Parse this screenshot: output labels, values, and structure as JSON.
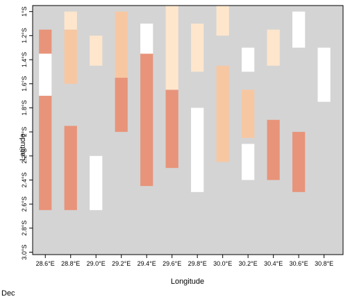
{
  "chart_data": {
    "type": "heatmap",
    "title": "",
    "xlabel": "Longitude",
    "ylabel": "Latitude",
    "xlim": [
      28.5,
      30.95
    ],
    "ylim": [
      -3.02,
      -0.95
    ],
    "x_ticks": [
      {
        "value": 28.6,
        "label": "28.6°E"
      },
      {
        "value": 28.8,
        "label": "28.8°E"
      },
      {
        "value": 29.0,
        "label": "29.0°E"
      },
      {
        "value": 29.2,
        "label": "29.2°E"
      },
      {
        "value": 29.4,
        "label": "29.4°E"
      },
      {
        "value": 29.6,
        "label": "29.6°E"
      },
      {
        "value": 29.8,
        "label": "29.8°E"
      },
      {
        "value": 30.0,
        "label": "30.0°E"
      },
      {
        "value": 30.2,
        "label": "30.2°E"
      },
      {
        "value": 30.4,
        "label": "30.4°E"
      },
      {
        "value": 30.6,
        "label": "30.6°E"
      },
      {
        "value": 30.8,
        "label": "30.8°E"
      }
    ],
    "y_ticks": [
      {
        "value": -1.0,
        "label": "1°S"
      },
      {
        "value": -1.2,
        "label": "1.2°S"
      },
      {
        "value": -1.4,
        "label": "1.4°S"
      },
      {
        "value": -1.6,
        "label": "1.6°S"
      },
      {
        "value": -1.8,
        "label": "1.8°S"
      },
      {
        "value": -2.0,
        "label": "2°S"
      },
      {
        "value": -2.2,
        "label": "2.2°S"
      },
      {
        "value": -2.4,
        "label": "2.4°S"
      },
      {
        "value": -2.6,
        "label": "2.6°S"
      },
      {
        "value": -2.8,
        "label": "2.8°S"
      },
      {
        "value": -3.0,
        "label": "3.0°S"
      }
    ],
    "grid": false,
    "cell_size_deg": 0.0625,
    "background_color": "#d4d4d4",
    "level_colors": {
      "white": "#ffffff",
      "light": "#fde6cc",
      "medium": "#f7c7a2",
      "dark": "#e8947a"
    },
    "cells": [
      {
        "col": 0,
        "r0": 4,
        "r1": 33,
        "level": "dark"
      },
      {
        "col": 0,
        "r0": 8,
        "r1": 14,
        "level": "white"
      },
      {
        "col": 1,
        "r0": 4,
        "r1": 12,
        "level": "medium"
      },
      {
        "col": 1,
        "r0": 20,
        "r1": 33,
        "level": "dark"
      },
      {
        "col": 1,
        "r0": 1,
        "r1": 3,
        "level": "light"
      },
      {
        "col": 2,
        "r0": 5,
        "r1": 9,
        "level": "light"
      },
      {
        "col": 2,
        "r0": 25,
        "r1": 33,
        "level": "white"
      },
      {
        "col": 3,
        "r0": 12,
        "r1": 20,
        "level": "dark"
      },
      {
        "col": 3,
        "r0": 1,
        "r1": 11,
        "level": "medium"
      },
      {
        "col": 4,
        "r0": 8,
        "r1": 29,
        "level": "dark"
      },
      {
        "col": 4,
        "r0": 3,
        "r1": 7,
        "level": "white"
      },
      {
        "col": 5,
        "r0": 14,
        "r1": 26,
        "level": "dark"
      },
      {
        "col": 5,
        "r0": 0,
        "r1": 13,
        "level": "light"
      },
      {
        "col": 6,
        "r0": 3,
        "r1": 10,
        "level": "light"
      },
      {
        "col": 6,
        "r0": 17,
        "r1": 30,
        "level": "white"
      },
      {
        "col": 7,
        "r0": 0,
        "r1": 4,
        "level": "light"
      },
      {
        "col": 7,
        "r0": 10,
        "r1": 25,
        "level": "medium"
      },
      {
        "col": 8,
        "r0": 7,
        "r1": 10,
        "level": "white"
      },
      {
        "col": 8,
        "r0": 14,
        "r1": 21,
        "level": "medium"
      },
      {
        "col": 8,
        "r0": 23,
        "r1": 28,
        "level": "white"
      },
      {
        "col": 9,
        "r0": 19,
        "r1": 28,
        "level": "dark"
      },
      {
        "col": 9,
        "r0": 4,
        "r1": 9,
        "level": "light"
      },
      {
        "col": 10,
        "r0": 1,
        "r1": 6,
        "level": "white"
      },
      {
        "col": 10,
        "r0": 21,
        "r1": 30,
        "level": "dark"
      },
      {
        "col": 11,
        "r0": 7,
        "r1": 15,
        "level": "white"
      }
    ]
  }
}
